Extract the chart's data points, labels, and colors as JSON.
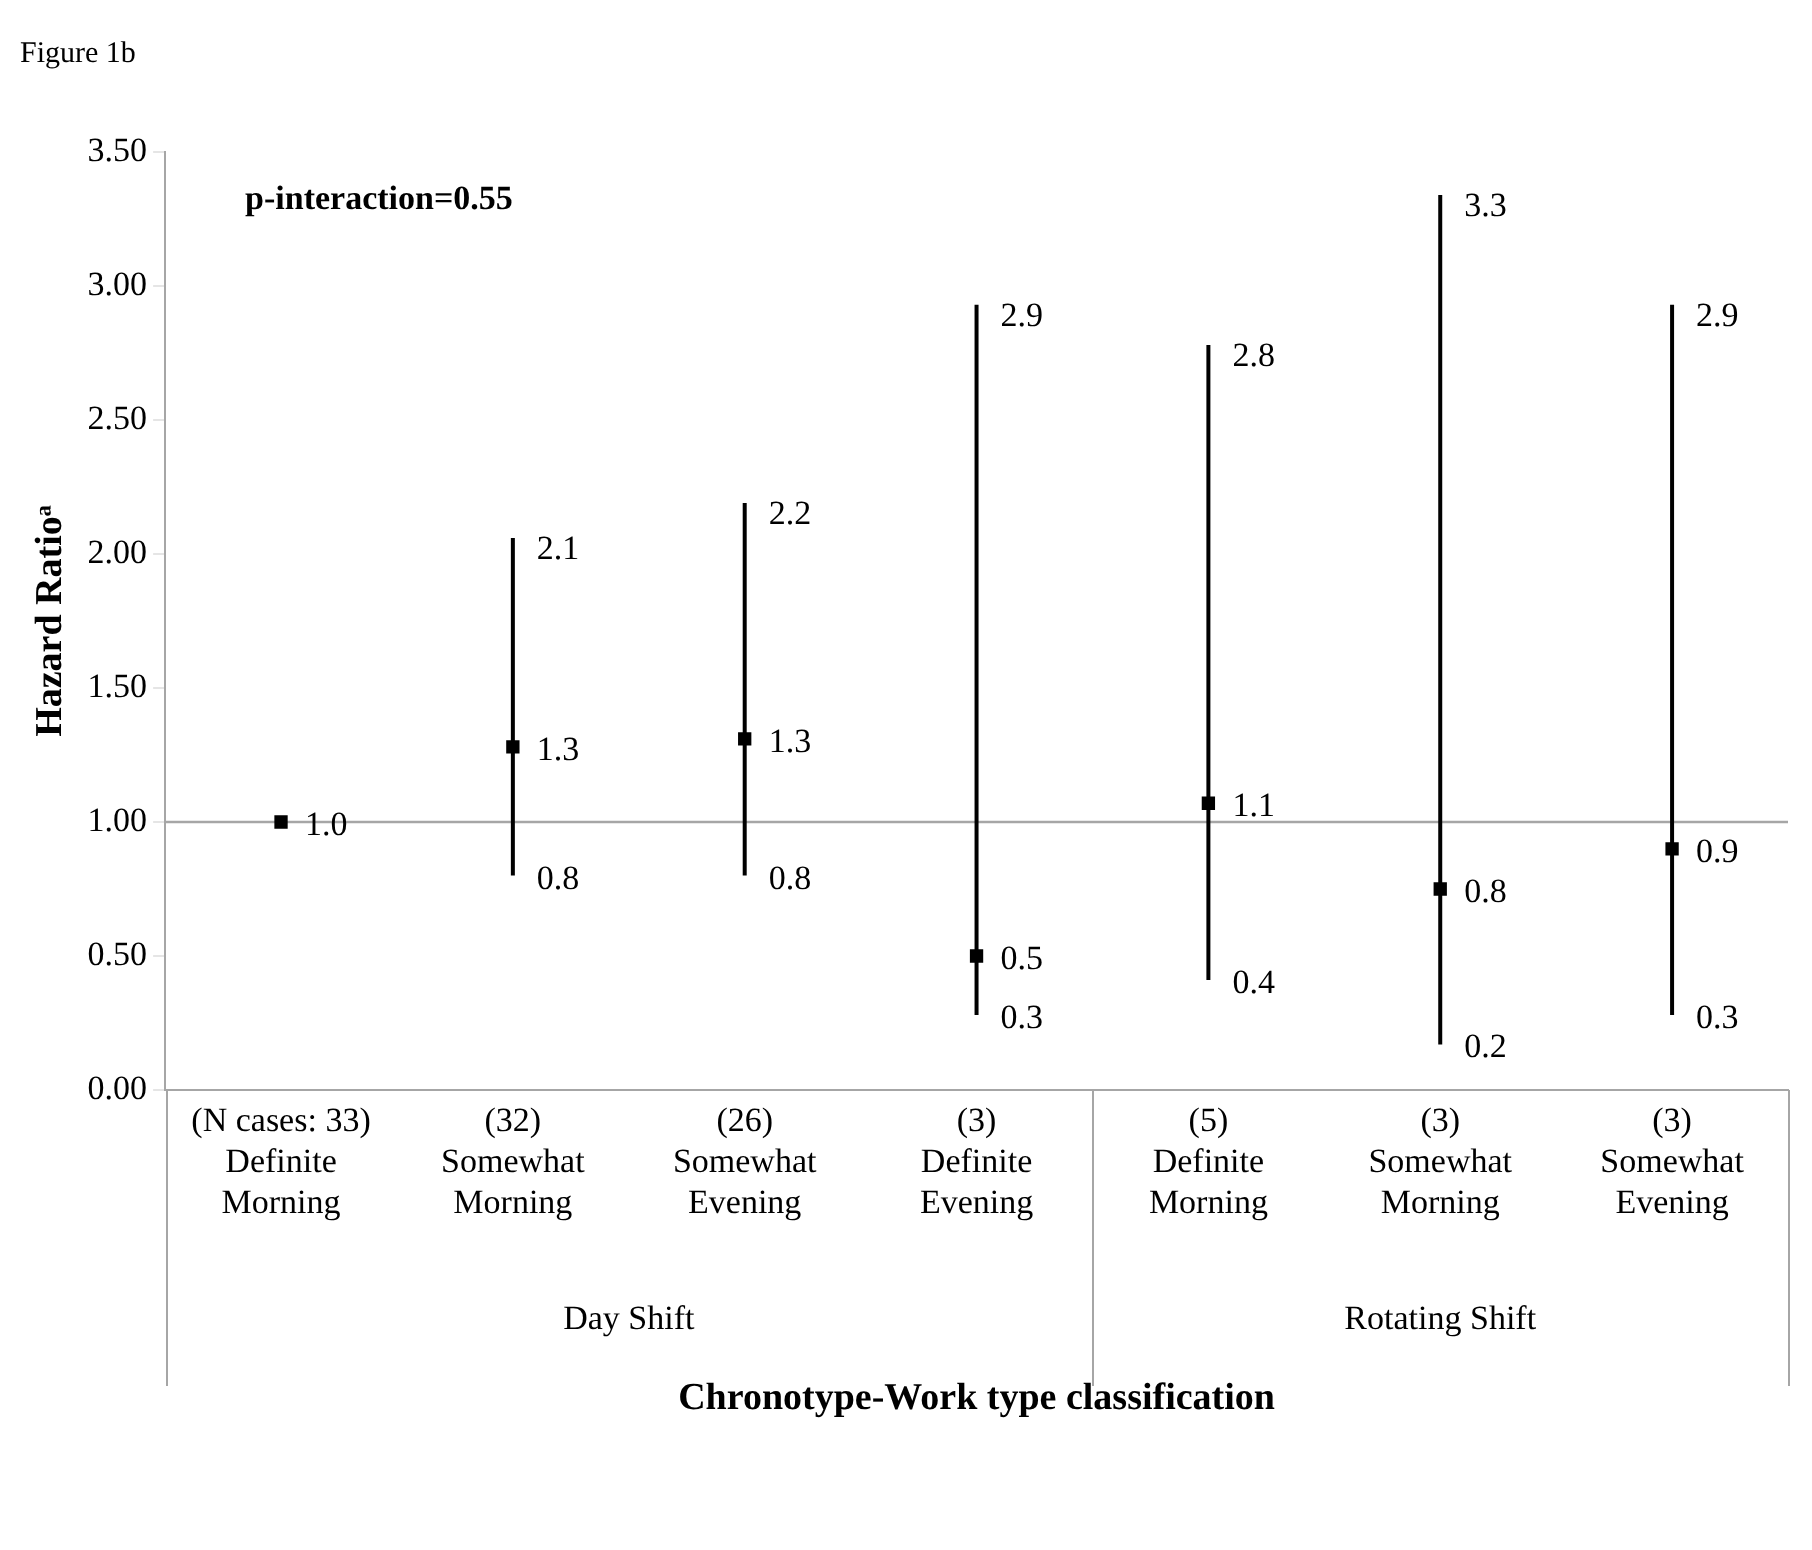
{
  "chart_data": {
    "type": "scatter",
    "title": "Figure 1b",
    "xlabel": "Chronotype-Work type classification",
    "ylabel": "Hazard Ratioᵃ",
    "categories": [
      "(N cases: 33)\nDefinite\nMorning",
      "(32)\nSomewhat\nMorning",
      "(26)\nSomewhat\nEvening",
      "(3)\nDefinite\nEvening",
      "(5)\nDefinite\nMorning",
      "(3)\nSomewhat\nMorning",
      "(3)\nSomewhat\nEvening"
    ],
    "series": [
      {
        "color": "#000000",
        "values": [
          1.0,
          1.28,
          1.31,
          0.5,
          1.07,
          0.75,
          0.9
        ],
        "errors": [
          null,
          [
            0.8,
            2.06
          ],
          [
            0.8,
            2.19
          ],
          [
            0.28,
            2.93
          ],
          [
            0.41,
            2.78
          ],
          [
            0.17,
            3.34
          ],
          [
            0.28,
            2.93
          ]
        ],
        "value_labels": [
          "1.0",
          "1.3",
          "1.3",
          "0.5",
          "1.1",
          "0.8",
          "0.9"
        ]
      }
    ],
    "ylim": [
      0,
      3.5
    ],
    "yticks": [
      {
        "value": 0,
        "label": "0.00"
      },
      {
        "value": 0.5,
        "label": "0.50"
      },
      {
        "value": 1,
        "label": "1.00"
      },
      {
        "value": 1.5,
        "label": "1.50"
      },
      {
        "value": 2,
        "label": "2.00"
      },
      {
        "value": 2.5,
        "label": "2.50"
      },
      {
        "value": 3,
        "label": "3.00"
      },
      {
        "value": 3.5,
        "label": "3.50"
      }
    ],
    "ref_lines": [
      {
        "axis": "y",
        "value": 1,
        "color": "#a6a6a6"
      }
    ],
    "legend": false,
    "grid": false,
    "marker": "square",
    "annotations": [
      "p-interaction=0.55",
      "Day Shift",
      "Rotating Shift",
      {
        "text": "2.1",
        "x": "(32)\nSomewhat\nMorning",
        "y": 2.06
      },
      {
        "text": "0.8",
        "x": "(32)\nSomewhat\nMorning",
        "y": 0.8
      },
      {
        "text": "2.2",
        "x": "(26)\nSomewhat\nEvening",
        "y": 2.19
      },
      {
        "text": "0.8",
        "x": "(26)\nSomewhat\nEvening",
        "y": 0.8
      },
      {
        "text": "2.9",
        "x": "(3)\nDefinite\nEvening",
        "y": 2.93
      },
      {
        "text": "0.3",
        "x": "(3)\nDefinite\nEvening",
        "y": 0.28
      },
      {
        "text": "2.8",
        "x": "(5)\nDefinite\nMorning",
        "y": 2.78
      },
      {
        "text": "0.4",
        "x": "(5)\nDefinite\nMorning",
        "y": 0.41
      },
      {
        "text": "3.3",
        "x": "(3)\nSomewhat\nMorning",
        "y": 3.34
      },
      {
        "text": "0.2",
        "x": "(3)\nSomewhat\nMorning",
        "y": 0.17
      },
      {
        "text": "2.9",
        "x": "(3)\nSomewhat\nEvening",
        "y": 2.93
      },
      {
        "text": "0.3",
        "x": "(3)\nSomewhat\nEvening",
        "y": 0.28
      }
    ]
  }
}
